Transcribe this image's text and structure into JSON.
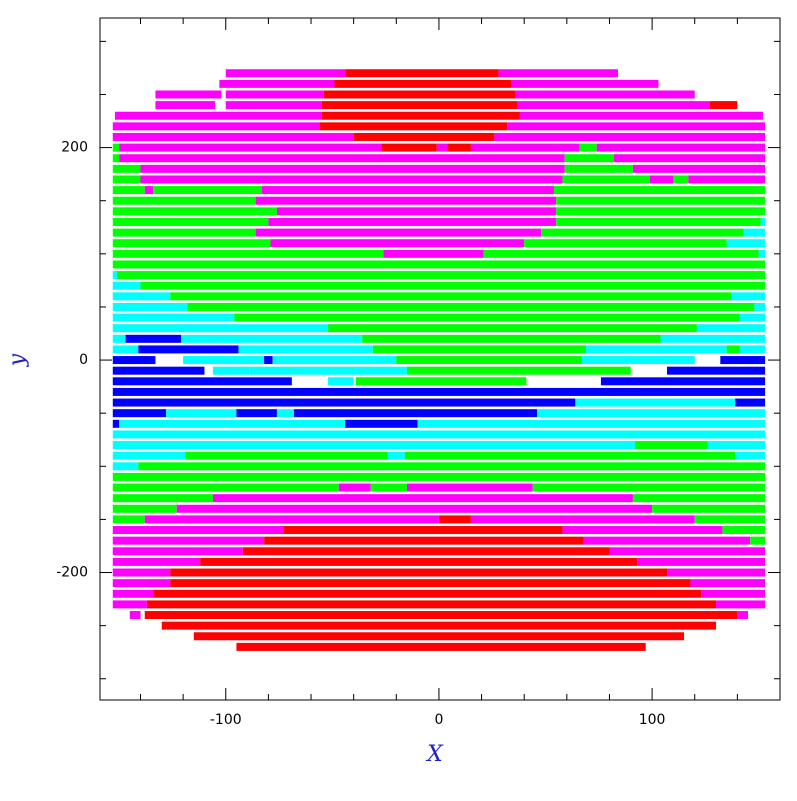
{
  "chart_data": {
    "type": "segments",
    "xlabel": "X",
    "ylabel": "y",
    "xlim": [
      -159,
      160
    ],
    "ylim": [
      -320,
      322
    ],
    "xticks": [
      -100,
      0,
      100
    ],
    "yticks": [
      -200,
      0,
      200
    ],
    "xminorticks": [
      -140,
      -120,
      -80,
      -60,
      -40,
      -20,
      20,
      40,
      60,
      80,
      120,
      140
    ],
    "yminorticks": [
      -300,
      -250,
      -150,
      -100,
      -50,
      50,
      100,
      150,
      250,
      300
    ],
    "colors": [
      "#ff00ff",
      "#ff0000",
      "#00ff00",
      "#00ffff",
      "#0000ff"
    ],
    "rows": [
      {
        "y": 270,
        "segments": [
          [
            -100,
            -44,
            0
          ],
          [
            -44,
            28,
            1
          ],
          [
            28,
            84,
            0
          ]
        ]
      },
      {
        "y": 260,
        "segments": [
          [
            -103,
            -49,
            0
          ],
          [
            -49,
            34,
            1
          ],
          [
            34,
            103,
            0
          ]
        ]
      },
      {
        "y": 250,
        "segments": [
          [
            -133,
            -102,
            0
          ],
          [
            -100,
            -54,
            0
          ],
          [
            -54,
            36,
            1
          ],
          [
            36,
            120,
            0
          ]
        ]
      },
      {
        "y": 240,
        "segments": [
          [
            -133,
            -105,
            0
          ],
          [
            -100,
            -55,
            0
          ],
          [
            -55,
            37,
            1
          ],
          [
            37,
            127,
            0
          ],
          [
            127,
            140,
            1
          ]
        ]
      },
      {
        "y": 230,
        "segments": [
          [
            -152,
            -55,
            0
          ],
          [
            -55,
            38,
            1
          ],
          [
            38,
            152,
            0
          ]
        ]
      },
      {
        "y": 220,
        "segments": [
          [
            -153,
            -56,
            0
          ],
          [
            -56,
            32,
            1
          ],
          [
            32,
            153,
            0
          ]
        ]
      },
      {
        "y": 210,
        "segments": [
          [
            -153,
            -40,
            0
          ],
          [
            -40,
            26,
            1
          ],
          [
            26,
            153,
            0
          ]
        ]
      },
      {
        "y": 200,
        "segments": [
          [
            -153,
            -150,
            2
          ],
          [
            -150,
            -27,
            0
          ],
          [
            -27,
            -1,
            1
          ],
          [
            -1,
            4,
            0
          ],
          [
            4,
            15,
            1
          ],
          [
            15,
            66,
            0
          ],
          [
            66,
            74,
            2
          ],
          [
            74,
            153,
            0
          ]
        ]
      },
      {
        "y": 190,
        "segments": [
          [
            -153,
            -150,
            2
          ],
          [
            -150,
            59,
            0
          ],
          [
            59,
            82,
            2
          ],
          [
            82,
            153,
            0
          ]
        ]
      },
      {
        "y": 180,
        "segments": [
          [
            -153,
            -140,
            2
          ],
          [
            -140,
            59,
            0
          ],
          [
            59,
            91,
            2
          ],
          [
            91,
            153,
            0
          ]
        ]
      },
      {
        "y": 170,
        "segments": [
          [
            -153,
            -140,
            2
          ],
          [
            -140,
            58,
            0
          ],
          [
            58,
            99,
            2
          ],
          [
            99,
            110,
            0
          ],
          [
            110,
            117,
            2
          ],
          [
            117,
            153,
            0
          ]
        ]
      },
      {
        "y": 160,
        "segments": [
          [
            -153,
            -138,
            2
          ],
          [
            -138,
            -134,
            0
          ],
          [
            -134,
            -83,
            2
          ],
          [
            -83,
            54,
            0
          ],
          [
            54,
            153,
            2
          ]
        ]
      },
      {
        "y": 150,
        "segments": [
          [
            -153,
            -86,
            2
          ],
          [
            -86,
            55,
            0
          ],
          [
            55,
            153,
            2
          ]
        ]
      },
      {
        "y": 140,
        "segments": [
          [
            -153,
            -76,
            2
          ],
          [
            -76,
            55,
            0
          ],
          [
            55,
            153,
            2
          ]
        ]
      },
      {
        "y": 130,
        "segments": [
          [
            -153,
            -80,
            2
          ],
          [
            -80,
            55,
            0
          ],
          [
            55,
            151,
            2
          ],
          [
            151,
            153,
            3
          ]
        ]
      },
      {
        "y": 120,
        "segments": [
          [
            -153,
            -86,
            2
          ],
          [
            -86,
            48,
            0
          ],
          [
            48,
            143,
            2
          ],
          [
            143,
            153,
            3
          ]
        ]
      },
      {
        "y": 110,
        "segments": [
          [
            -153,
            -79,
            2
          ],
          [
            -79,
            40,
            0
          ],
          [
            40,
            135,
            2
          ],
          [
            135,
            153,
            3
          ]
        ]
      },
      {
        "y": 100,
        "segments": [
          [
            -153,
            -26,
            2
          ],
          [
            -26,
            21,
            0
          ],
          [
            21,
            150,
            2
          ],
          [
            150,
            153,
            3
          ]
        ]
      },
      {
        "y": 90,
        "segments": [
          [
            -153,
            153,
            2
          ]
        ]
      },
      {
        "y": 80,
        "segments": [
          [
            -153,
            -151,
            3
          ],
          [
            -151,
            153,
            2
          ]
        ]
      },
      {
        "y": 70,
        "segments": [
          [
            -153,
            -140,
            3
          ],
          [
            -140,
            153,
            2
          ]
        ]
      },
      {
        "y": 60,
        "segments": [
          [
            -153,
            -126,
            3
          ],
          [
            -126,
            137,
            2
          ],
          [
            137,
            153,
            3
          ]
        ]
      },
      {
        "y": 50,
        "segments": [
          [
            -153,
            -118,
            3
          ],
          [
            -118,
            148,
            2
          ],
          [
            148,
            153,
            3
          ]
        ]
      },
      {
        "y": 40,
        "segments": [
          [
            -153,
            -96,
            3
          ],
          [
            -96,
            141,
            2
          ],
          [
            141,
            153,
            3
          ]
        ]
      },
      {
        "y": 30,
        "segments": [
          [
            -153,
            -52,
            3
          ],
          [
            -52,
            121,
            2
          ],
          [
            121,
            153,
            3
          ]
        ]
      },
      {
        "y": 20,
        "segments": [
          [
            -153,
            -147,
            3
          ],
          [
            -147,
            -121,
            4
          ],
          [
            -121,
            -36,
            3
          ],
          [
            -36,
            104,
            2
          ],
          [
            104,
            153,
            3
          ]
        ]
      },
      {
        "y": 10,
        "segments": [
          [
            -153,
            -141,
            3
          ],
          [
            -141,
            -94,
            4
          ],
          [
            -94,
            -31,
            3
          ],
          [
            -31,
            69,
            2
          ],
          [
            69,
            135,
            3
          ],
          [
            135,
            141,
            2
          ],
          [
            141,
            153,
            3
          ]
        ]
      },
      {
        "y": 0,
        "segments": [
          [
            -153,
            -133,
            4
          ],
          [
            -120,
            -82,
            3
          ],
          [
            -82,
            -78,
            4
          ],
          [
            -78,
            -20,
            3
          ],
          [
            -20,
            67,
            2
          ],
          [
            67,
            120,
            3
          ],
          [
            132,
            153,
            4
          ]
        ]
      },
      {
        "y": -10,
        "segments": [
          [
            -153,
            -110,
            4
          ],
          [
            -106,
            -89,
            3
          ],
          [
            -89,
            -15,
            3
          ],
          [
            -15,
            90,
            2
          ],
          [
            107,
            153,
            4
          ]
        ]
      },
      {
        "y": -20,
        "segments": [
          [
            -153,
            -69,
            4
          ],
          [
            -52,
            -40,
            3
          ],
          [
            -39,
            41,
            2
          ],
          [
            76,
            153,
            4
          ]
        ]
      },
      {
        "y": -30,
        "segments": [
          [
            -153,
            153,
            4
          ]
        ]
      },
      {
        "y": -40,
        "segments": [
          [
            -153,
            64,
            4
          ],
          [
            64,
            139,
            3
          ],
          [
            139,
            153,
            4
          ]
        ]
      },
      {
        "y": -50,
        "segments": [
          [
            -153,
            -128,
            4
          ],
          [
            -128,
            -95,
            3
          ],
          [
            -95,
            -76,
            4
          ],
          [
            -76,
            -68,
            3
          ],
          [
            -68,
            46,
            4
          ],
          [
            46,
            153,
            3
          ]
        ]
      },
      {
        "y": -60,
        "segments": [
          [
            -153,
            -150,
            4
          ],
          [
            -150,
            -44,
            3
          ],
          [
            -44,
            -10,
            4
          ],
          [
            -10,
            153,
            3
          ]
        ]
      },
      {
        "y": -70,
        "segments": [
          [
            -153,
            153,
            3
          ]
        ]
      },
      {
        "y": -80,
        "segments": [
          [
            -153,
            92,
            3
          ],
          [
            92,
            126,
            2
          ],
          [
            126,
            153,
            3
          ]
        ]
      },
      {
        "y": -90,
        "segments": [
          [
            -153,
            -119,
            3
          ],
          [
            -119,
            -24,
            2
          ],
          [
            -24,
            -16,
            3
          ],
          [
            -16,
            139,
            2
          ],
          [
            139,
            153,
            3
          ]
        ]
      },
      {
        "y": -100,
        "segments": [
          [
            -153,
            -141,
            3
          ],
          [
            -141,
            153,
            2
          ]
        ]
      },
      {
        "y": -110,
        "segments": [
          [
            -153,
            153,
            2
          ]
        ]
      },
      {
        "y": -120,
        "segments": [
          [
            -153,
            -47,
            2
          ],
          [
            -47,
            -32,
            0
          ],
          [
            -32,
            -15,
            2
          ],
          [
            -15,
            44,
            0
          ],
          [
            44,
            153,
            2
          ]
        ]
      },
      {
        "y": -130,
        "segments": [
          [
            -153,
            -106,
            2
          ],
          [
            -106,
            91,
            0
          ],
          [
            91,
            153,
            2
          ]
        ]
      },
      {
        "y": -140,
        "segments": [
          [
            -153,
            -123,
            2
          ],
          [
            -123,
            100,
            0
          ],
          [
            100,
            153,
            2
          ]
        ]
      },
      {
        "y": -150,
        "segments": [
          [
            -153,
            -138,
            2
          ],
          [
            -138,
            0,
            0
          ],
          [
            0,
            15,
            1
          ],
          [
            15,
            120,
            0
          ],
          [
            120,
            153,
            2
          ]
        ]
      },
      {
        "y": -160,
        "segments": [
          [
            -153,
            -73,
            0
          ],
          [
            -73,
            58,
            1
          ],
          [
            58,
            133,
            0
          ],
          [
            133,
            153,
            2
          ]
        ]
      },
      {
        "y": -170,
        "segments": [
          [
            -153,
            -82,
            0
          ],
          [
            -82,
            68,
            1
          ],
          [
            68,
            146,
            0
          ],
          [
            146,
            153,
            2
          ]
        ]
      },
      {
        "y": -180,
        "segments": [
          [
            -153,
            -92,
            0
          ],
          [
            -92,
            80,
            1
          ],
          [
            80,
            153,
            0
          ]
        ]
      },
      {
        "y": -190,
        "segments": [
          [
            -153,
            -112,
            0
          ],
          [
            -112,
            93,
            1
          ],
          [
            93,
            153,
            0
          ]
        ]
      },
      {
        "y": -200,
        "segments": [
          [
            -153,
            -126,
            0
          ],
          [
            -126,
            107,
            1
          ],
          [
            107,
            153,
            0
          ]
        ]
      },
      {
        "y": -210,
        "segments": [
          [
            -153,
            -126,
            0
          ],
          [
            -126,
            118,
            1
          ],
          [
            118,
            153,
            0
          ]
        ]
      },
      {
        "y": -220,
        "segments": [
          [
            -153,
            -134,
            0
          ],
          [
            -134,
            123,
            1
          ],
          [
            123,
            153,
            0
          ]
        ]
      },
      {
        "y": -230,
        "segments": [
          [
            -153,
            -137,
            0
          ],
          [
            -137,
            130,
            1
          ],
          [
            130,
            153,
            0
          ]
        ]
      },
      {
        "y": -240,
        "segments": [
          [
            -145,
            -140,
            0
          ],
          [
            -138,
            140,
            1
          ],
          [
            140,
            145,
            0
          ]
        ]
      },
      {
        "y": -250,
        "segments": [
          [
            -130,
            130,
            1
          ]
        ]
      },
      {
        "y": -260,
        "segments": [
          [
            -115,
            115,
            1
          ]
        ]
      },
      {
        "y": -270,
        "segments": [
          [
            -95,
            97,
            1
          ]
        ]
      }
    ]
  }
}
